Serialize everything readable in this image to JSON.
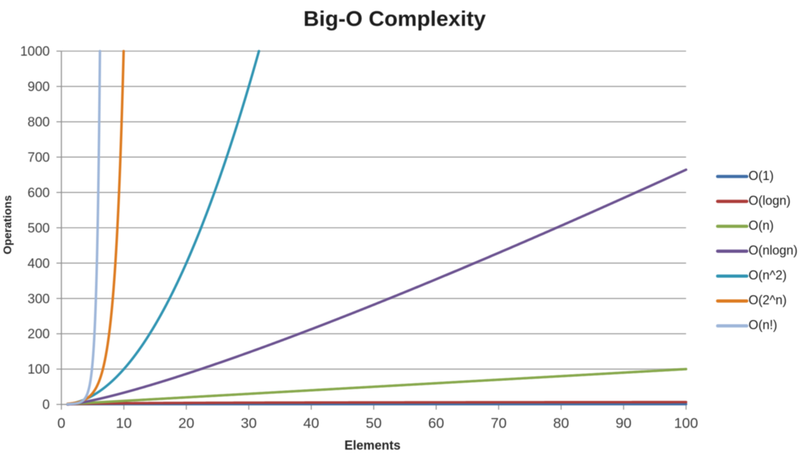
{
  "chart_data": {
    "type": "line",
    "title": "Big-O Complexity",
    "xlabel": "Elements",
    "ylabel": "Operations",
    "xlim": [
      0,
      100
    ],
    "ylim": [
      0,
      1000
    ],
    "x_ticks": [
      "0",
      "10",
      "20",
      "30",
      "40",
      "50",
      "60",
      "70",
      "80",
      "90",
      "100"
    ],
    "y_ticks": [
      "0",
      "100",
      "200",
      "300",
      "400",
      "500",
      "600",
      "700",
      "800",
      "900",
      "1000"
    ],
    "grid": "horizontal-only",
    "legend_position": "right",
    "background_color": "#ffffff",
    "axis_color": "#8e8e8e",
    "grid_color": "#959595",
    "tick_label_color": "#3e3e3e",
    "title_color": "#1b1b1b",
    "axis_title_color": "#242424",
    "legend_text_color": "#1a1a1a",
    "x_sample_start": 1,
    "series": [
      {
        "name": "O(1)",
        "fn": "constant_1",
        "color": "#3f6da6",
        "values_at_x": {
          "1": 1,
          "10": 1,
          "50": 1,
          "100": 1
        }
      },
      {
        "name": "O(logn)",
        "fn": "log2_n",
        "color": "#ac3c39",
        "values_at_x": {
          "1": 0,
          "10": 3.32,
          "50": 5.64,
          "100": 6.64
        }
      },
      {
        "name": "O(n)",
        "fn": "n",
        "color": "#87a84c",
        "values_at_x": {
          "1": 1,
          "10": 10,
          "50": 50,
          "100": 100
        }
      },
      {
        "name": "O(nlogn)",
        "fn": "n_log2_n",
        "color": "#6b5290",
        "values_at_x": {
          "1": 0,
          "10": 33.2,
          "50": 282.2,
          "100": 664.4
        }
      },
      {
        "name": "O(n^2)",
        "fn": "n_squared",
        "color": "#3094b2",
        "values_at_x": {
          "1": 1,
          "10": 100,
          "31.6": 1000
        }
      },
      {
        "name": "O(2^n)",
        "fn": "two_pow_n",
        "color": "#dd7b20",
        "values_at_x": {
          "1": 2,
          "8": 256,
          "9.97": 1000
        }
      },
      {
        "name": "O(n!)",
        "fn": "n_factorial",
        "color": "#9eb6d9",
        "values_at_x": {
          "1": 1,
          "5": 120,
          "6.17": 1000
        }
      }
    ]
  }
}
